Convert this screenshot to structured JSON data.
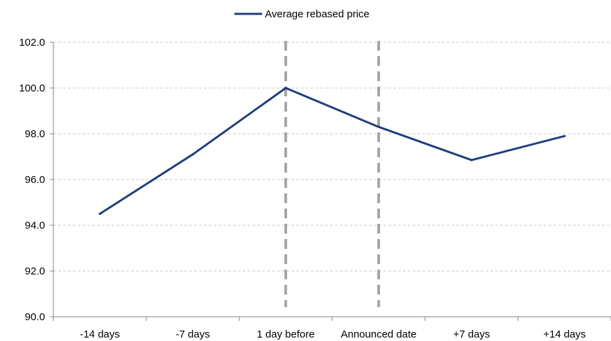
{
  "chart_data": {
    "type": "line",
    "title": "",
    "xlabel": "",
    "ylabel": "",
    "categories": [
      "-14 days",
      "-7 days",
      "1 day before",
      "Announced date",
      "+7 days",
      "+14 days"
    ],
    "series": [
      {
        "name": "Average rebased price",
        "values": [
          94.5,
          97.1,
          100.0,
          98.3,
          96.85,
          97.9
        ],
        "color": "#1f3f7a"
      }
    ],
    "ylim": [
      90.0,
      102.0
    ],
    "yticks": [
      "90.0",
      "92.0",
      "94.0",
      "96.0",
      "98.0",
      "100.0",
      "102.0"
    ],
    "grid": "horizontal dashed",
    "legend_position": "top-center",
    "event_markers": [
      "1 day before",
      "Announced date"
    ],
    "event_marker_color": "#a6a6a6"
  }
}
